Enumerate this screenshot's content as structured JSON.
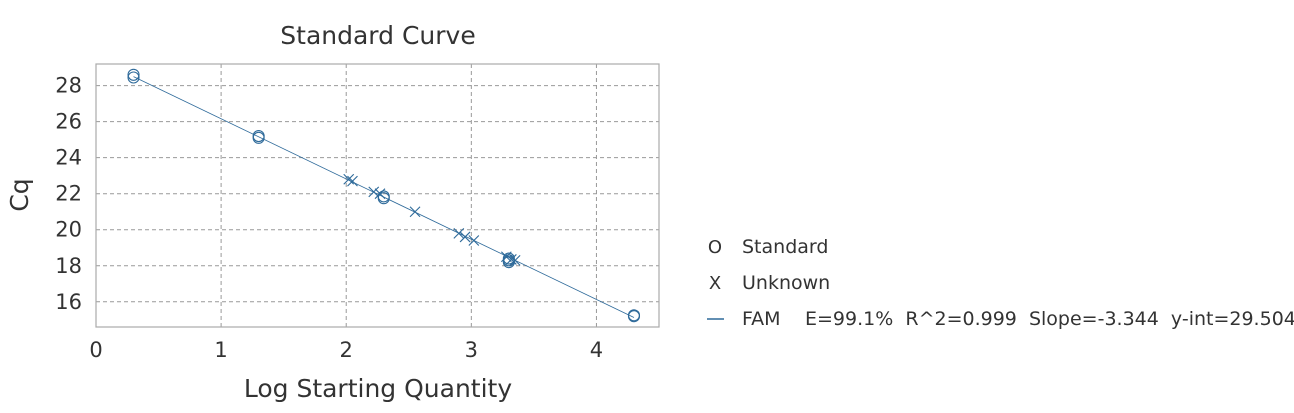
{
  "chart_data": {
    "type": "scatter",
    "title": "Standard Curve",
    "xlabel": "Log Starting Quantity",
    "ylabel": "Cq",
    "xlim": [
      0,
      4.5
    ],
    "ylim": [
      14.6,
      29.2
    ],
    "xticks": [
      0,
      1,
      2,
      3,
      4
    ],
    "yticks": [
      16,
      18,
      20,
      22,
      24,
      26,
      28
    ],
    "grid": true,
    "legend_position": "right",
    "colors": {
      "series": "#2e6a9a",
      "grid": "#999999",
      "axes": "#aaaaaa"
    },
    "series": [
      {
        "name": "Standard",
        "marker": "O",
        "x": [
          0.3,
          0.3,
          1.3,
          1.3,
          2.3,
          2.3,
          3.3,
          3.3,
          3.3,
          4.3,
          4.3
        ],
        "y": [
          28.6,
          28.45,
          25.2,
          25.1,
          21.85,
          21.75,
          18.4,
          18.3,
          18.2,
          15.25,
          15.2
        ]
      },
      {
        "name": "Unknown",
        "marker": "X",
        "x": [
          2.02,
          2.05,
          2.22,
          2.27,
          2.55,
          2.9,
          2.95,
          3.02,
          3.28,
          3.32,
          3.35
        ],
        "y": [
          22.8,
          22.7,
          22.1,
          22.0,
          21.0,
          19.8,
          19.6,
          19.4,
          18.5,
          18.35,
          18.3
        ]
      }
    ],
    "fit": {
      "name": "FAM",
      "stats": "E=99.1%  R^2=0.999  Slope=-3.344  y-int=29.504",
      "slope": -3.344,
      "intercept": 29.504
    },
    "legend_symbols": {
      "standard": "O",
      "unknown": "X",
      "fit": "—"
    }
  }
}
